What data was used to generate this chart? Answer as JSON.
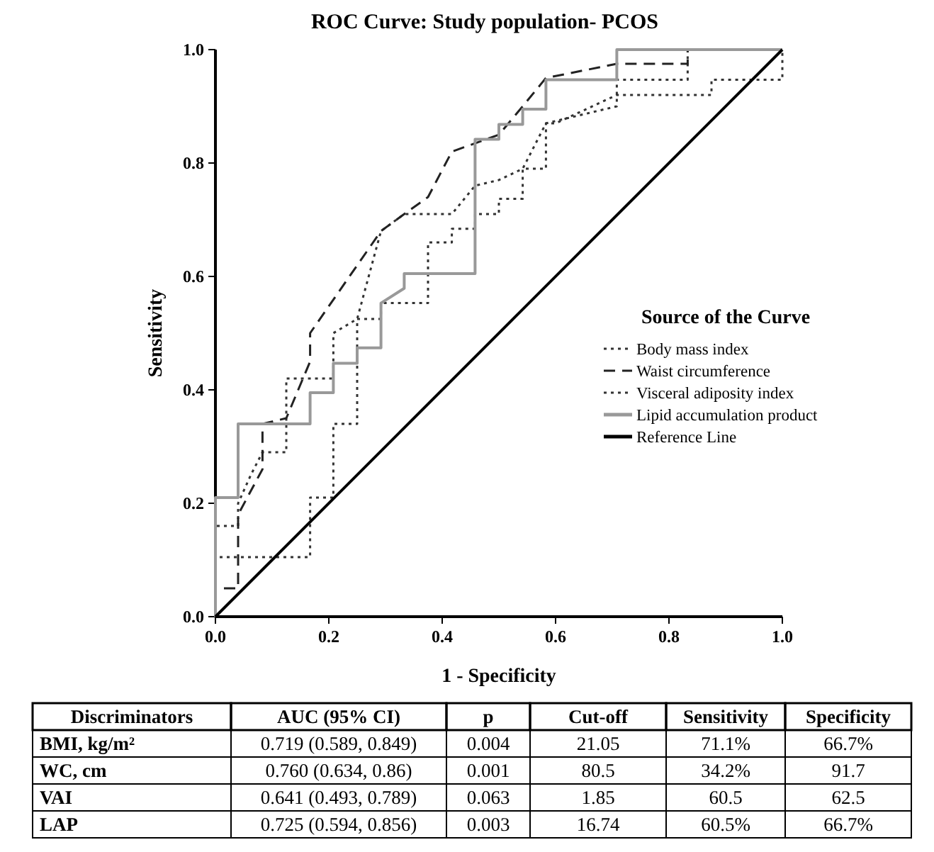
{
  "chart_data": [
    {
      "type": "line",
      "title": "ROC Curve: Study population- PCOS",
      "xlabel": "1 - Specificity",
      "ylabel": "Sensitivity",
      "legend_title": "Source of the Curve",
      "legend": "right",
      "grid": false,
      "xlim": [
        0,
        1
      ],
      "ylim": [
        0,
        1
      ],
      "xticks": [
        {
          "value": 0,
          "label": "0.0"
        },
        {
          "value": 0.2,
          "label": "0.2"
        },
        {
          "value": 0.4,
          "label": "0.4"
        },
        {
          "value": 0.6,
          "label": "0.6"
        },
        {
          "value": 0.8,
          "label": "0.8"
        },
        {
          "value": 1,
          "label": "1.0"
        }
      ],
      "yticks": [
        {
          "value": 0,
          "label": "0.0"
        },
        {
          "value": 0.2,
          "label": "0.2"
        },
        {
          "value": 0.4,
          "label": "0.4"
        },
        {
          "value": 0.6,
          "label": "0.6"
        },
        {
          "value": 0.8,
          "label": "0.8"
        },
        {
          "value": 1,
          "label": "1.0"
        }
      ],
      "series": [
        {
          "name": "Body mass index",
          "color": "#333333",
          "line_style": "dotted",
          "x": [
            0,
            0,
            0.04,
            0.04,
            0.0625,
            0.083,
            0.125,
            0.125,
            0.208,
            0.208,
            0.25,
            0.292,
            0.333,
            0.417,
            0.458,
            0.5,
            0.542,
            0.583,
            0.708,
            0.708,
            0.833,
            0.833,
            1
          ],
          "values": [
            0,
            0.16,
            0.16,
            0.2,
            0.25,
            0.29,
            0.29,
            0.42,
            0.42,
            0.5,
            0.525,
            0.68,
            0.71,
            0.71,
            0.76,
            0.77,
            0.79,
            0.87,
            0.9,
            0.947,
            0.947,
            1,
            1
          ]
        },
        {
          "name": "Waist circumference",
          "color": "#222222",
          "line_style": "dashed",
          "x": [
            0,
            0,
            0.04,
            0.04,
            0.083,
            0.083,
            0.125,
            0.167,
            0.167,
            0.292,
            0.333,
            0.375,
            0.417,
            0.5,
            0.542,
            0.583,
            0.708,
            0.833,
            0.833,
            1
          ],
          "values": [
            0,
            0.05,
            0.05,
            0.18,
            0.26,
            0.34,
            0.35,
            0.45,
            0.5,
            0.68,
            0.71,
            0.74,
            0.82,
            0.85,
            0.9,
            0.95,
            0.975,
            0.975,
            1,
            1
          ]
        },
        {
          "name": "Visceral adiposity index",
          "color": "#333333",
          "line_style": "dotted",
          "x": [
            0,
            0,
            0.167,
            0.167,
            0.208,
            0.208,
            0.25,
            0.25,
            0.292,
            0.292,
            0.375,
            0.375,
            0.417,
            0.417,
            0.458,
            0.458,
            0.5,
            0.5,
            0.542,
            0.542,
            0.583,
            0.583,
            0.6,
            0.708,
            0.875,
            0.875,
            1,
            1
          ],
          "values": [
            0,
            0.105,
            0.105,
            0.21,
            0.21,
            0.34,
            0.34,
            0.525,
            0.525,
            0.553,
            0.553,
            0.66,
            0.66,
            0.684,
            0.684,
            0.71,
            0.71,
            0.737,
            0.737,
            0.79,
            0.79,
            0.87,
            0.87,
            0.92,
            0.92,
            0.947,
            0.947,
            1
          ]
        },
        {
          "name": "Lipid accumulation product",
          "color": "#999999",
          "line_style": "solid",
          "x": [
            0,
            0,
            0.04,
            0.04,
            0.167,
            0.167,
            0.208,
            0.208,
            0.25,
            0.25,
            0.292,
            0.292,
            0.333,
            0.333,
            0.458,
            0.458,
            0.5,
            0.5,
            0.542,
            0.542,
            0.583,
            0.583,
            0.708,
            0.708,
            1
          ],
          "values": [
            0,
            0.21,
            0.21,
            0.34,
            0.34,
            0.395,
            0.395,
            0.447,
            0.447,
            0.474,
            0.474,
            0.553,
            0.579,
            0.605,
            0.605,
            0.842,
            0.842,
            0.868,
            0.868,
            0.895,
            0.895,
            0.947,
            0.947,
            1,
            1
          ]
        },
        {
          "name": "Reference Line",
          "color": "#000000",
          "line_style": "solid",
          "x": [
            0,
            1
          ],
          "values": [
            0,
            1
          ]
        }
      ]
    },
    {
      "type": "other",
      "categories": [
        "Discriminators",
        "AUC (95% CI)",
        "p",
        "Cut-off",
        "Sensitivity",
        "Specificity"
      ],
      "y_categories": [
        "BMI, kg/m²",
        "WC, cm",
        "VAI",
        "LAP"
      ],
      "cell_labels": [
        [
          "0.719 (0.589, 0.849)",
          "0.004",
          "21.05",
          "71.1%",
          "66.7%"
        ],
        [
          "0.760 (0.634, 0.86)",
          "0.001",
          "80.5",
          "34.2%",
          "91.7"
        ],
        [
          "0.641 (0.493, 0.789)",
          "0.063",
          "1.85",
          "60.5",
          "62.5"
        ],
        [
          "0.725 (0.594, 0.856)",
          "0.003",
          "16.74",
          "60.5%",
          "66.7%"
        ]
      ]
    }
  ]
}
